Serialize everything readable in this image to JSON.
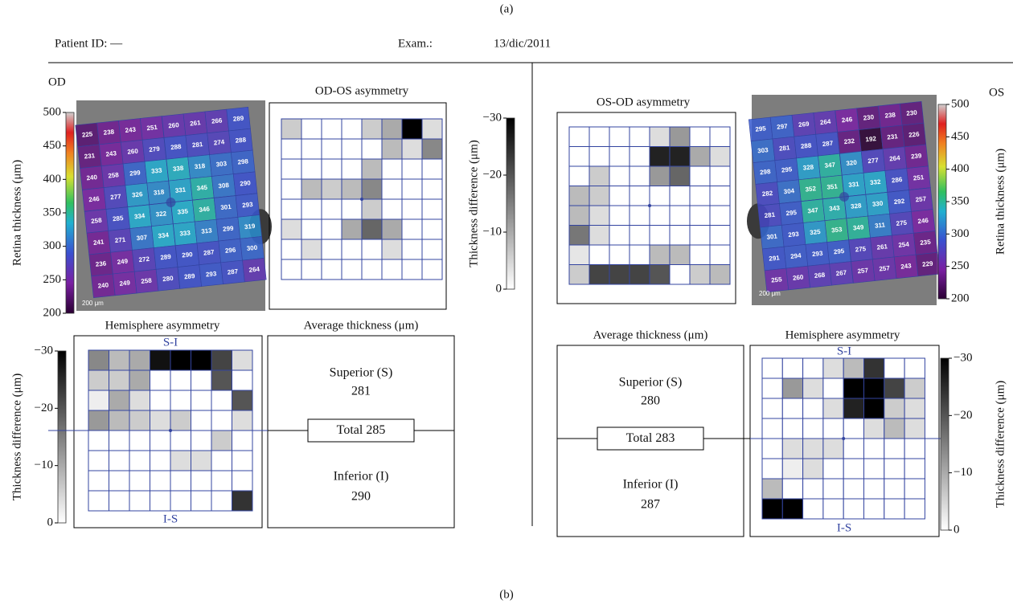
{
  "figure_labels": {
    "top": "(a)",
    "bottom": "(b)"
  },
  "header": {
    "patient_id": "Patient ID: —",
    "exam_label": "Exam.:",
    "exam_date": "13/dic/2011"
  },
  "thickness_scale": {
    "axis_label": "Retina thickness (μm)",
    "range": [
      200,
      500
    ],
    "ticks": [
      200,
      250,
      300,
      350,
      400,
      450,
      500
    ]
  },
  "difference_scale": {
    "axis_label": "Thickness difference (μm)",
    "range": [
      -30,
      0
    ],
    "ticks": [
      {
        "value": -30,
        "label": "−30"
      },
      {
        "value": -20,
        "label": "−20"
      },
      {
        "value": -10,
        "label": "−10"
      },
      0
    ]
  },
  "od": {
    "eye": "OD",
    "thickness_map": {
      "scale_label": "200 μm",
      "values": [
        [
          225,
          238,
          243,
          251,
          260,
          261,
          266,
          289
        ],
        [
          231,
          243,
          260,
          279,
          288,
          281,
          274,
          288
        ],
        [
          240,
          258,
          299,
          333,
          338,
          318,
          303,
          298
        ],
        [
          246,
          277,
          326,
          318,
          331,
          345,
          308,
          290
        ],
        [
          258,
          285,
          334,
          322,
          335,
          346,
          301,
          293
        ],
        [
          241,
          271,
          307,
          334,
          333,
          313,
          299,
          319
        ],
        [
          236,
          249,
          272,
          289,
          290,
          287,
          296,
          300
        ],
        [
          240,
          249,
          258,
          280,
          289,
          293,
          287,
          264
        ]
      ]
    },
    "asymmetry": {
      "title": "OD-OS asymmetry",
      "values": [
        [
          -6,
          0,
          0,
          0,
          -6,
          -10,
          -30,
          -4
        ],
        [
          0,
          0,
          0,
          0,
          0,
          -8,
          -4,
          -14
        ],
        [
          0,
          0,
          0,
          0,
          -8,
          0,
          0,
          0
        ],
        [
          0,
          -8,
          -6,
          -8,
          -14,
          0,
          0,
          0
        ],
        [
          0,
          0,
          0,
          0,
          -6,
          0,
          0,
          0
        ],
        [
          -4,
          0,
          0,
          -10,
          -18,
          -10,
          0,
          0
        ],
        [
          0,
          -4,
          0,
          0,
          0,
          -4,
          0,
          0
        ],
        [
          0,
          0,
          0,
          0,
          0,
          0,
          0,
          0
        ]
      ]
    },
    "hemisphere": {
      "title": "Hemisphere asymmetry",
      "top_label": "S-I",
      "bottom_label": "I-S",
      "values": [
        [
          -14,
          -8,
          -10,
          -28,
          -30,
          -30,
          -22,
          -4
        ],
        [
          -6,
          -6,
          -10,
          0,
          0,
          0,
          -20,
          0
        ],
        [
          -2,
          -10,
          -4,
          0,
          0,
          0,
          0,
          -20
        ],
        [
          -12,
          -8,
          -6,
          -4,
          -6,
          0,
          0,
          -4
        ],
        [
          0,
          0,
          0,
          0,
          0,
          0,
          -6,
          0
        ],
        [
          0,
          0,
          0,
          0,
          -4,
          -4,
          0,
          0
        ],
        [
          0,
          0,
          0,
          0,
          0,
          0,
          0,
          0
        ],
        [
          0,
          0,
          0,
          0,
          0,
          0,
          0,
          -24
        ]
      ]
    },
    "average": {
      "title": "Average thickness (μm)",
      "superior_label": "Superior (S)",
      "superior": 281,
      "total_label": "Total",
      "total": 285,
      "inferior_label": "Inferior (I)",
      "inferior": 290
    }
  },
  "os": {
    "eye": "OS",
    "thickness_map": {
      "scale_label": "200 μm",
      "values": [
        [
          295,
          297,
          269,
          264,
          246,
          230,
          238,
          230
        ],
        [
          303,
          281,
          288,
          287,
          232,
          192,
          231,
          226
        ],
        [
          298,
          295,
          328,
          347,
          320,
          277,
          264,
          239
        ],
        [
          282,
          304,
          352,
          351,
          331,
          332,
          286,
          251
        ],
        [
          281,
          295,
          347,
          343,
          328,
          330,
          292,
          257
        ],
        [
          301,
          293,
          325,
          353,
          349,
          311,
          275,
          246
        ],
        [
          291,
          294,
          293,
          295,
          275,
          261,
          254,
          235
        ],
        [
          255,
          260,
          268,
          267,
          257,
          257,
          243,
          229
        ]
      ]
    },
    "asymmetry": {
      "title": "OS-OD asymmetry",
      "values": [
        [
          0,
          0,
          0,
          0,
          -4,
          -12,
          0,
          0
        ],
        [
          0,
          0,
          0,
          0,
          -26,
          -26,
          -10,
          -4
        ],
        [
          0,
          -6,
          0,
          0,
          -12,
          -18,
          0,
          0
        ],
        [
          -8,
          -6,
          0,
          0,
          0,
          0,
          0,
          0
        ],
        [
          -8,
          -4,
          0,
          0,
          0,
          0,
          0,
          0
        ],
        [
          -16,
          -4,
          0,
          0,
          0,
          0,
          0,
          0
        ],
        [
          -3,
          0,
          0,
          0,
          -8,
          -8,
          0,
          0
        ],
        [
          -6,
          -22,
          -22,
          -22,
          -20,
          0,
          -6,
          -8
        ]
      ]
    },
    "hemisphere": {
      "title": "Hemisphere asymmetry",
      "top_label": "S-I",
      "bottom_label": "I-S",
      "values": [
        [
          0,
          0,
          0,
          -4,
          -8,
          -24,
          0,
          0
        ],
        [
          0,
          -12,
          -4,
          0,
          -30,
          -30,
          -22,
          -6
        ],
        [
          0,
          0,
          0,
          -4,
          -26,
          -30,
          -6,
          -4
        ],
        [
          0,
          0,
          0,
          0,
          0,
          -4,
          -8,
          -4
        ],
        [
          0,
          -4,
          -4,
          -4,
          0,
          0,
          0,
          0
        ],
        [
          0,
          -2,
          -4,
          0,
          0,
          0,
          0,
          0
        ],
        [
          -8,
          0,
          0,
          0,
          0,
          0,
          0,
          0
        ],
        [
          -30,
          -30,
          0,
          0,
          0,
          0,
          0,
          0
        ]
      ]
    },
    "average": {
      "title": "Average thickness (μm)",
      "superior_label": "Superior (S)",
      "superior": 280,
      "total_label": "Total",
      "total": 283,
      "inferior_label": "Inferior (I)",
      "inferior": 287
    }
  }
}
